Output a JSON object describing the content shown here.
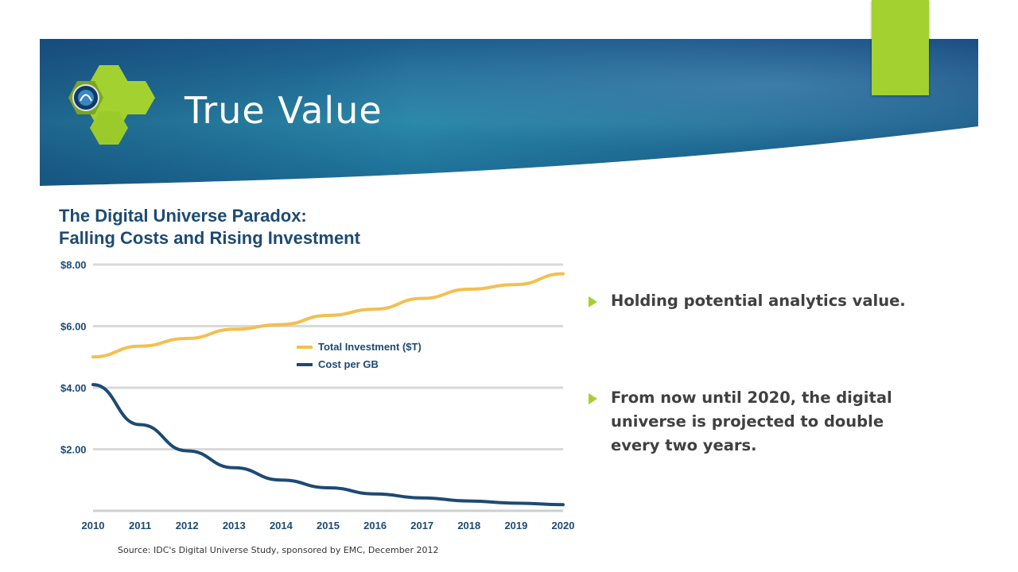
{
  "slide": {
    "title": "True Value",
    "accent": "#a3d12f",
    "banner_color": "#1d5e8f",
    "logo": "hexagon-cluster-logo"
  },
  "bullets": [
    {
      "icon": "green-arrow-bullet",
      "text": "Holding potential analytics value."
    },
    {
      "icon": "green-arrow-bullet",
      "text": "From now until 2020, the digital universe is projected to double every two years."
    }
  ],
  "source": "Source: IDC's Digital Universe Study, sponsored by EMC, December 2012",
  "chart_data": {
    "type": "line",
    "title": [
      "The Digital Universe Paradox:",
      "Falling Costs and Rising Investment"
    ],
    "x": [
      "2010",
      "2011",
      "2012",
      "2013",
      "2014",
      "2015",
      "2016",
      "2017",
      "2018",
      "2019",
      "2020"
    ],
    "ylim": [
      0,
      8
    ],
    "yticks": [
      "$2.00",
      "$4.00",
      "$6.00",
      "$8.00"
    ],
    "ytick_values": [
      2,
      4,
      6,
      8
    ],
    "grid": true,
    "legend": "middle",
    "series": [
      {
        "name": "Total Investment ($T)",
        "color": "#f3bf4f",
        "values": [
          5.0,
          5.35,
          5.6,
          5.9,
          6.05,
          6.35,
          6.55,
          6.9,
          7.2,
          7.35,
          7.7
        ]
      },
      {
        "name": "Cost per GB",
        "color": "#1d4a73",
        "values": [
          4.1,
          2.8,
          1.95,
          1.4,
          1.0,
          0.75,
          0.55,
          0.42,
          0.32,
          0.25,
          0.2
        ]
      }
    ]
  }
}
